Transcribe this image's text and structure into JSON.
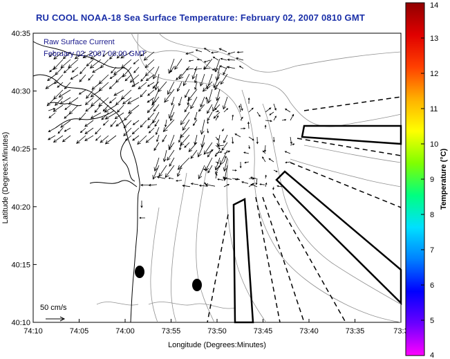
{
  "title": "RU COOL  NOAA-18  Sea Surface Temperature:  February 02, 2007 0810 GMT",
  "legend": {
    "line1": "Raw Surface Current",
    "line2": "February 02, 2007 06:00 GMT"
  },
  "axes": {
    "xlabel": "Longitude (Degrees:Minutes)",
    "ylabel": "Latitude (Degrees:Minutes)",
    "x_ticks": [
      "74:10",
      "74:05",
      "74:00",
      "73:55",
      "73:50",
      "73:45",
      "73:40",
      "73:35",
      "73:3"
    ],
    "y_ticks": [
      "40:35",
      "40:30",
      "40:25",
      "40:20",
      "40:15",
      "40:10"
    ]
  },
  "scale_label": "50 cm/s",
  "colorbar": {
    "label": "Temperature (°C)",
    "ticks": [
      "14",
      "13",
      "12",
      "11",
      "10",
      "9",
      "8",
      "7",
      "6",
      "5",
      "4"
    ],
    "colors": [
      "#ff00ff",
      "#6a00ff",
      "#0000ff",
      "#0080ff",
      "#00e0ff",
      "#00ff80",
      "#80ff00",
      "#ffff00",
      "#ffb000",
      "#ff4000",
      "#e00000",
      "#900000"
    ]
  },
  "map_style": {
    "coast_color": "#000000",
    "bathy_color": "#909090",
    "arrow_color": "#000000"
  }
}
